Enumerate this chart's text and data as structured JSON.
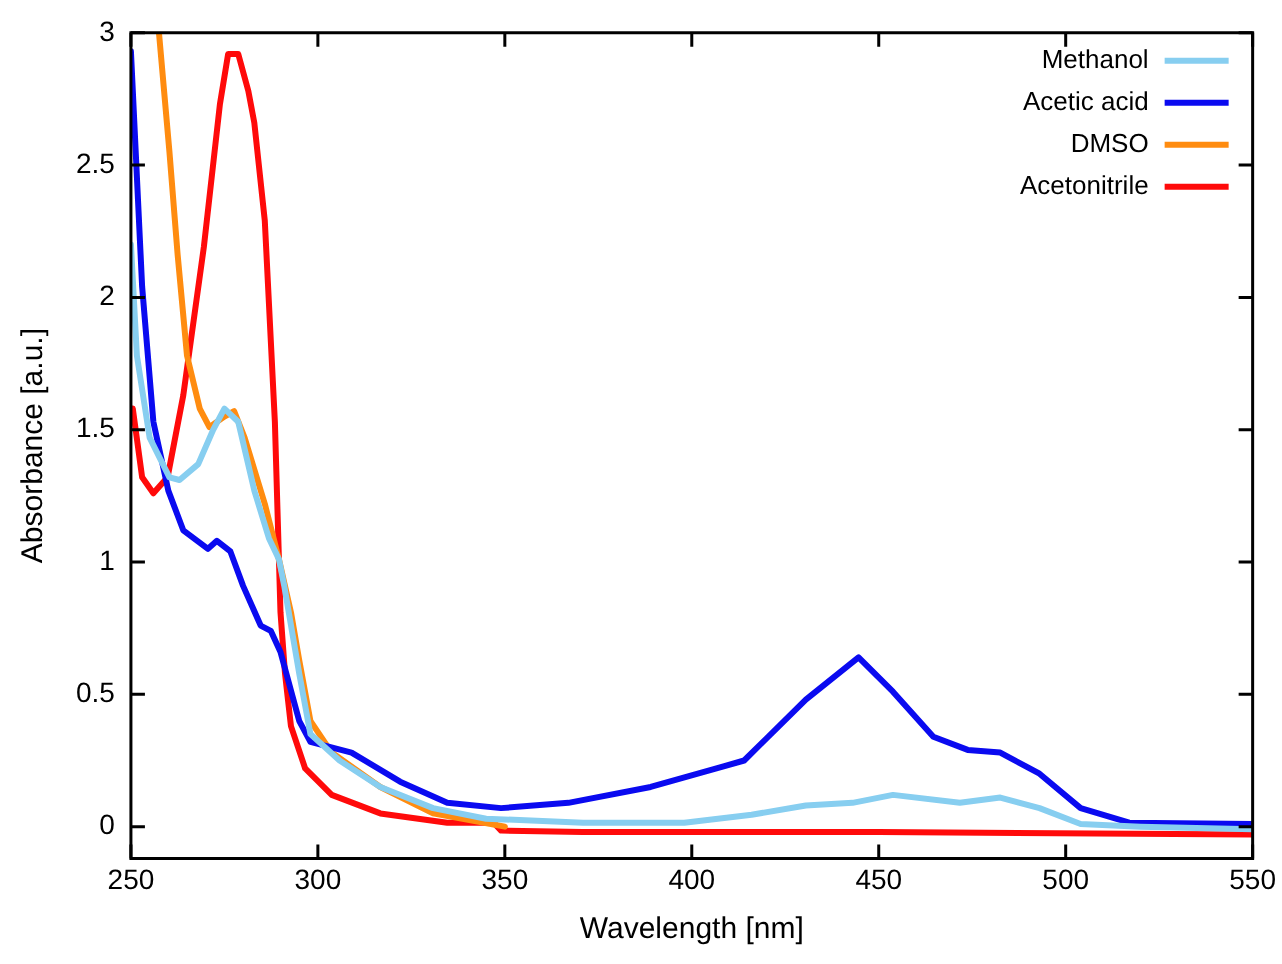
{
  "chart_data": {
    "type": "line",
    "xlabel": "Wavelength [nm]",
    "ylabel": "Absorbance [a.u.]",
    "xlim": [
      250,
      550
    ],
    "xticks": [
      250,
      300,
      350,
      400,
      450,
      500,
      550
    ],
    "ylim": [
      -0.12,
      3
    ],
    "yticks": [
      0,
      0.5,
      1,
      1.5,
      2,
      2.5,
      3
    ],
    "grid": false,
    "legend": "top right",
    "marker": "none",
    "line_style": "solid",
    "series": [
      {
        "name": "Methanol",
        "color": "#87cef0",
        "x": [
          250,
          251.6,
          255,
          260.3,
          263,
          268,
          272,
          275,
          278.7,
          283,
          286.9,
          289.6,
          291,
          295,
          298,
          305.8,
          316.7,
          330.8,
          345,
          370.9,
          398,
          416,
          430.5,
          443,
          453.8,
          471.7,
          482.5,
          493,
          504,
          520,
          550
        ],
        "values": [
          2.2,
          1.78,
          1.47,
          1.32,
          1.31,
          1.37,
          1.5,
          1.58,
          1.53,
          1.27,
          1.09,
          1.01,
          0.91,
          0.58,
          0.35,
          0.25,
          0.15,
          0.07,
          0.03,
          0.015,
          0.015,
          0.045,
          0.08,
          0.09,
          0.12,
          0.09,
          0.11,
          0.07,
          0.01,
          0,
          -0.01
        ]
      },
      {
        "name": "Acetic acid",
        "color": "#0a0af0",
        "x": [
          250,
          253,
          256,
          260,
          264,
          270.6,
          273,
          276.6,
          280,
          284.7,
          287.4,
          290,
          295,
          298,
          309,
          322,
          334.6,
          349,
          367,
          389,
          406.6,
          414,
          430.5,
          444.6,
          453.8,
          464.6,
          473.8,
          482.5,
          493,
          504,
          517,
          550
        ],
        "values": [
          2.93,
          2.04,
          1.53,
          1.27,
          1.12,
          1.05,
          1.08,
          1.04,
          0.91,
          0.76,
          0.74,
          0.66,
          0.4,
          0.32,
          0.28,
          0.17,
          0.09,
          0.07,
          0.09,
          0.15,
          0.22,
          0.25,
          0.48,
          0.64,
          0.51,
          0.34,
          0.29,
          0.28,
          0.2,
          0.07,
          0.015,
          0.01
        ]
      },
      {
        "name": "DMSO",
        "color": "#ff8c10",
        "x": [
          257.5,
          260.3,
          262.5,
          265,
          268.4,
          271,
          275,
          277.6,
          280.4,
          285.8,
          289.6,
          292.8,
          295,
          298,
          303.7,
          316.7,
          330.8,
          347,
          350
        ],
        "values": [
          3,
          2.55,
          2.16,
          1.78,
          1.58,
          1.51,
          1.55,
          1.57,
          1.47,
          1.22,
          1.01,
          0.81,
          0.63,
          0.4,
          0.28,
          0.15,
          0.05,
          0.008,
          0
        ]
      },
      {
        "name": "Acetonitrile",
        "color": "#ff0a0a",
        "x": [
          250.5,
          253,
          256,
          259.8,
          264,
          269.5,
          273.8,
          276,
          278.7,
          281.4,
          283,
          285.8,
          288.5,
          290,
          291.2,
          292.8,
          296.6,
          303.7,
          316.7,
          334.6,
          347,
          349,
          370.8,
          450,
          550
        ],
        "values": [
          1.58,
          1.32,
          1.26,
          1.32,
          1.63,
          2.19,
          2.73,
          2.92,
          2.92,
          2.78,
          2.66,
          2.29,
          1.53,
          0.81,
          0.58,
          0.38,
          0.22,
          0.12,
          0.05,
          0.015,
          0.015,
          -0.015,
          -0.02,
          -0.02,
          -0.03
        ]
      }
    ]
  }
}
